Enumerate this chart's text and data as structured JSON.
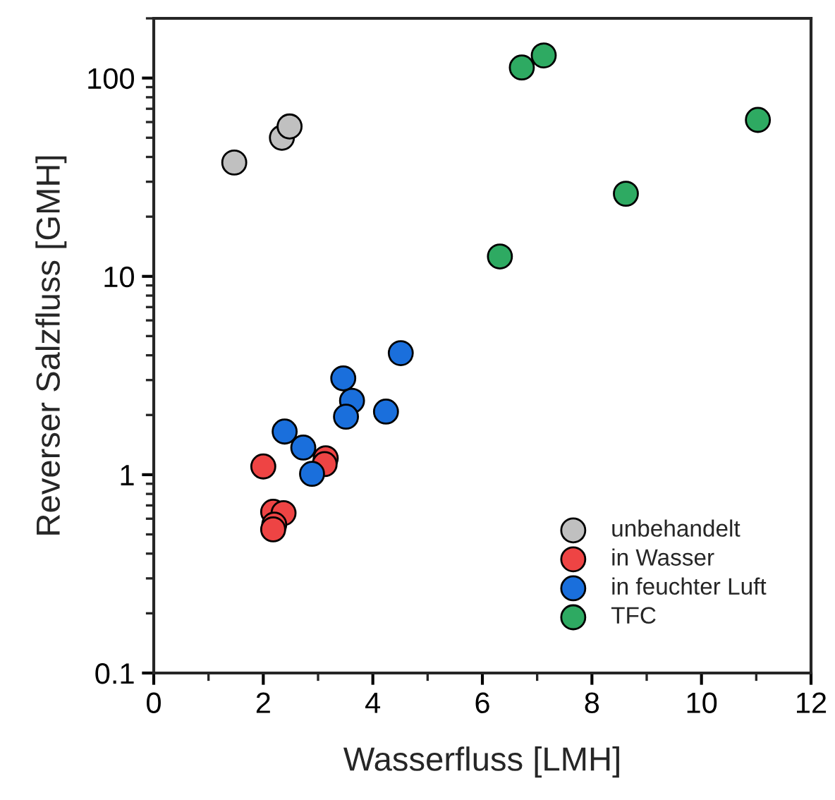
{
  "chart_data": {
    "type": "scatter",
    "xlabel": "Wasserfluss [LMH]",
    "ylabel": "Reverser Salzfluss [GMH]",
    "xlim": [
      0,
      12
    ],
    "xticks": [
      0,
      2,
      4,
      6,
      8,
      10,
      12
    ],
    "ylim": [
      0.1,
      200
    ],
    "yticks": [
      0.1,
      1,
      10,
      100
    ],
    "log": "y",
    "grid": false,
    "legend": "bottom right",
    "marker": "circle",
    "series": [
      {
        "name": "unbehandelt",
        "color": "#c0c0c0",
        "x": [
          1.47,
          2.34,
          2.48
        ],
        "values": [
          37.5,
          50,
          57
        ]
      },
      {
        "name": "in Wasser",
        "color": "#ee4444",
        "x": [
          2.0,
          2.98,
          3.14,
          3.12,
          2.18,
          2.37,
          2.2,
          2.18
        ],
        "values": [
          1.1,
          null,
          1.21,
          1.13,
          0.65,
          0.64,
          0.56,
          0.53
        ]
      },
      {
        "name": "in feuchter Luft",
        "color": "#1a6fdc",
        "x": [
          4.51,
          3.46,
          3.62,
          3.51,
          4.24,
          2.39,
          2.73,
          2.89
        ],
        "values": [
          4.1,
          3.06,
          2.36,
          1.96,
          2.08,
          1.65,
          1.37,
          1.01
        ]
      },
      {
        "name": "TFC",
        "color": "#2eaa62",
        "x": [
          6.32,
          6.72,
          7.12,
          8.62,
          11.03
        ],
        "values": [
          12.6,
          113,
          130,
          26.1,
          61.5
        ]
      }
    ]
  }
}
